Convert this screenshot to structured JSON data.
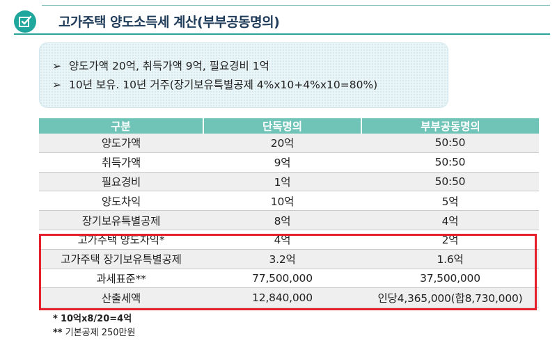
{
  "header": {
    "title": "고가주택 양도소득세 계산(부부공동명의)",
    "icon": "checkbox-icon",
    "accent_color": "#1fa79d"
  },
  "info": [
    {
      "bullet": "➢",
      "text": "양도가액 20억, 취득가액 9억, 필요경비 1억"
    },
    {
      "bullet": "➢",
      "text": "10년 보유. 10년 거주(장기보유특별공제 4%x10+4%x10=80%)"
    }
  ],
  "table": {
    "headers": [
      "구분",
      "단독명의",
      "부부공동명의"
    ],
    "rows": [
      [
        "양도가액",
        "20억",
        "50:50"
      ],
      [
        "취득가액",
        "9억",
        "50:50"
      ],
      [
        "필요경비",
        "1억",
        "50:50"
      ],
      [
        "양도차익",
        "10억",
        "5억"
      ],
      [
        "장기보유특별공제",
        "8억",
        "4억"
      ],
      [
        "고가주택 양도차익*",
        "4억",
        "2억"
      ],
      [
        "고가주택 장기보유특별공제",
        "3.2억",
        "1.6억"
      ],
      [
        "과세표준**",
        "77,500,000",
        "37,500,000"
      ],
      [
        "산출세액",
        "12,840,000",
        "인당4,365,000(합8,730,000)"
      ]
    ],
    "header_color": "#70c4b7",
    "highlight_color": "#e3202b"
  },
  "notes": [
    {
      "marker": "*",
      "text": "10억x8/20=4억"
    },
    {
      "marker": "**",
      "text": "기본공제 250만원"
    }
  ]
}
